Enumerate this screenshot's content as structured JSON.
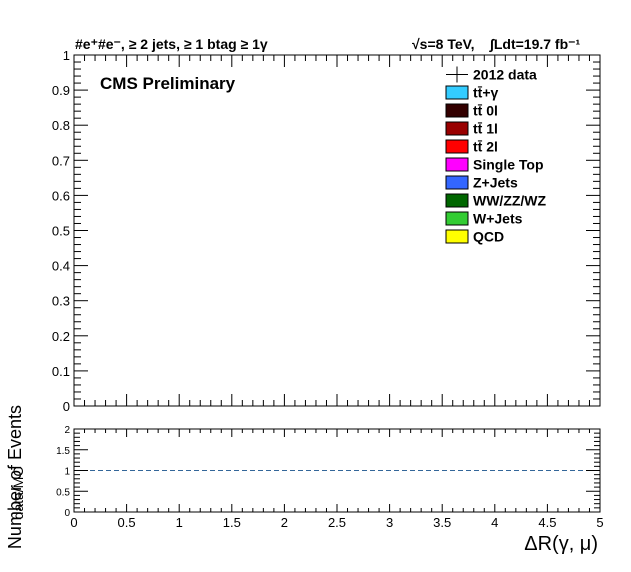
{
  "chart_data": [
    {
      "type": "bar",
      "panel": "main",
      "title_left": "#e⁺#e⁻, ≥ 2 jets, ≥ 1 btag ≥ 1γ",
      "title_right_energy": "√s=8 TeV,",
      "title_right_lumi": "∫Ldt=19.7 fb⁻¹",
      "annotation": "CMS Preliminary",
      "ylabel": "Number of Events",
      "xlabel": "",
      "xlim": [
        0,
        5
      ],
      "ylim": [
        0,
        1
      ],
      "yticks": [
        0,
        0.1,
        0.2,
        0.3,
        0.4,
        0.5,
        0.6,
        0.7,
        0.8,
        0.9,
        1
      ],
      "ytick_labels": [
        "0",
        "0.1",
        "0.2",
        "0.3",
        "0.4",
        "0.5",
        "0.6",
        "0.7",
        "0.8",
        "0.9",
        "1"
      ],
      "legend_position": "top-right",
      "legend": [
        {
          "name": "2012 data",
          "style": "marker",
          "color": "#000000"
        },
        {
          "name": "tt̄+γ",
          "style": "fill",
          "color": "#33ccff"
        },
        {
          "name": "tt̄ 0l",
          "style": "fill",
          "color": "#330000"
        },
        {
          "name": "tt̄ 1l",
          "style": "fill",
          "color": "#990000"
        },
        {
          "name": "tt̄ 2l",
          "style": "fill",
          "color": "#ff0000"
        },
        {
          "name": "Single Top",
          "style": "fill",
          "color": "#ff00ff"
        },
        {
          "name": "Z+Jets",
          "style": "fill",
          "color": "#3366ff"
        },
        {
          "name": "WW/ZZ/WZ",
          "style": "fill",
          "color": "#006600"
        },
        {
          "name": "W+Jets",
          "style": "fill",
          "color": "#33cc33"
        },
        {
          "name": "QCD",
          "style": "fill",
          "color": "#ffff00"
        }
      ],
      "series": []
    },
    {
      "type": "line",
      "panel": "ratio",
      "ylabel": "data/MC",
      "xlabel": "ΔR(γ, μ)",
      "xlim": [
        0,
        5
      ],
      "ylim": [
        0,
        2
      ],
      "xticks": [
        0,
        0.5,
        1,
        1.5,
        2,
        2.5,
        3,
        3.5,
        4,
        4.5,
        5
      ],
      "xtick_labels": [
        "0",
        "0.5",
        "1",
        "1.5",
        "2",
        "2.5",
        "3",
        "3.5",
        "4",
        "4.5",
        "5"
      ],
      "yticks": [
        0,
        0.5,
        1,
        1.5,
        2
      ],
      "ytick_labels": [
        "0",
        "0.5",
        "1",
        "1.5",
        "2"
      ],
      "reference_line": {
        "y": 1,
        "style": "dashed",
        "color": "#336699"
      },
      "series": []
    }
  ]
}
